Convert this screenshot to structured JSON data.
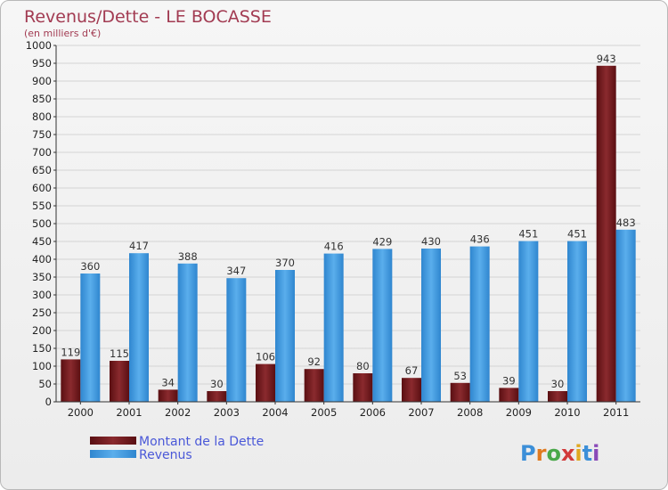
{
  "chart_data": {
    "type": "bar",
    "title": "Revenus/Dette - LE BOCASSE",
    "subtitle": "(en milliers d'€)",
    "categories": [
      "2000",
      "2001",
      "2002",
      "2003",
      "2004",
      "2005",
      "2006",
      "2007",
      "2008",
      "2009",
      "2010",
      "2011"
    ],
    "series": [
      {
        "name": "Montant de la Dette",
        "color": "#7a1f23",
        "values": [
          119,
          115,
          34,
          30,
          106,
          92,
          80,
          67,
          53,
          39,
          30,
          943
        ]
      },
      {
        "name": "Revenus",
        "color": "#3b97df",
        "values": [
          360,
          417,
          388,
          347,
          370,
          416,
          429,
          430,
          436,
          451,
          451,
          483
        ]
      }
    ],
    "ylim": [
      0,
      1000
    ],
    "ytick_step": 50,
    "grid": true,
    "legend_position": "bottom-left",
    "logo_text": "Proxiti"
  }
}
